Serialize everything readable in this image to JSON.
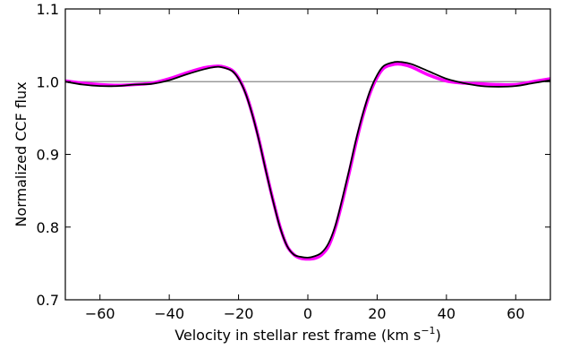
{
  "chart_data": {
    "type": "line",
    "title": "",
    "xlabel": "Velocity in stellar rest frame (km s",
    "xlabel_superscript": "−1",
    "xlabel_suffix": ")",
    "ylabel": "Normalized CCF flux",
    "xlim": [
      -70,
      70
    ],
    "ylim": [
      0.7,
      1.1
    ],
    "xticks": [
      -60,
      -40,
      -20,
      0,
      20,
      40,
      60
    ],
    "xtick_labels": [
      "−60",
      "−40",
      "−20",
      "0",
      "20",
      "40",
      "60"
    ],
    "yticks": [
      0.7,
      0.8,
      0.9,
      1.0,
      1.1
    ],
    "ytick_labels": [
      "0.7",
      "0.8",
      "0.9",
      "1.0",
      "1.1"
    ],
    "grid": false,
    "reference_line": {
      "y": 1.0,
      "color": "#888888"
    },
    "series": [
      {
        "color": "#ff00ff",
        "x": [
          -70,
          -65,
          -60,
          -55,
          -50,
          -45,
          -40,
          -35,
          -30,
          -27,
          -25,
          -22,
          -20,
          -18,
          -16,
          -14,
          -12,
          -10,
          -8,
          -6,
          -4,
          -2,
          0,
          2,
          4,
          6,
          8,
          10,
          12,
          14,
          16,
          18,
          20,
          22,
          25,
          27,
          30,
          35,
          40,
          45,
          50,
          55,
          60,
          65,
          70
        ],
        "y": [
          1.001,
          0.998,
          0.996,
          0.995,
          0.996,
          0.998,
          1.004,
          1.012,
          1.019,
          1.021,
          1.021,
          1.016,
          1.005,
          0.985,
          0.955,
          0.918,
          0.876,
          0.836,
          0.8,
          0.774,
          0.762,
          0.757,
          0.756,
          0.757,
          0.762,
          0.774,
          0.8,
          0.836,
          0.876,
          0.918,
          0.955,
          0.985,
          1.006,
          1.019,
          1.024,
          1.024,
          1.02,
          1.009,
          1.001,
          0.998,
          0.997,
          0.996,
          0.996,
          1.0,
          1.004
        ]
      },
      {
        "color": "#000000",
        "x": [
          -70,
          -65,
          -60,
          -55,
          -50,
          -45,
          -40,
          -35,
          -30,
          -27,
          -25,
          -22,
          -20,
          -18,
          -16,
          -14,
          -12,
          -10,
          -8,
          -6,
          -4,
          -2,
          0,
          2,
          4,
          6,
          8,
          10,
          12,
          14,
          16,
          18,
          20,
          22,
          25,
          27,
          30,
          35,
          40,
          45,
          50,
          55,
          60,
          65,
          70
        ],
        "y": [
          1.0,
          0.996,
          0.994,
          0.994,
          0.996,
          0.997,
          1.002,
          1.01,
          1.017,
          1.02,
          1.02,
          1.015,
          1.004,
          0.984,
          0.954,
          0.917,
          0.875,
          0.835,
          0.799,
          0.774,
          0.762,
          0.759,
          0.758,
          0.76,
          0.765,
          0.778,
          0.803,
          0.84,
          0.88,
          0.922,
          0.958,
          0.988,
          1.009,
          1.022,
          1.027,
          1.027,
          1.024,
          1.014,
          1.004,
          0.998,
          0.994,
          0.993,
          0.994,
          0.998,
          1.002
        ]
      }
    ]
  }
}
